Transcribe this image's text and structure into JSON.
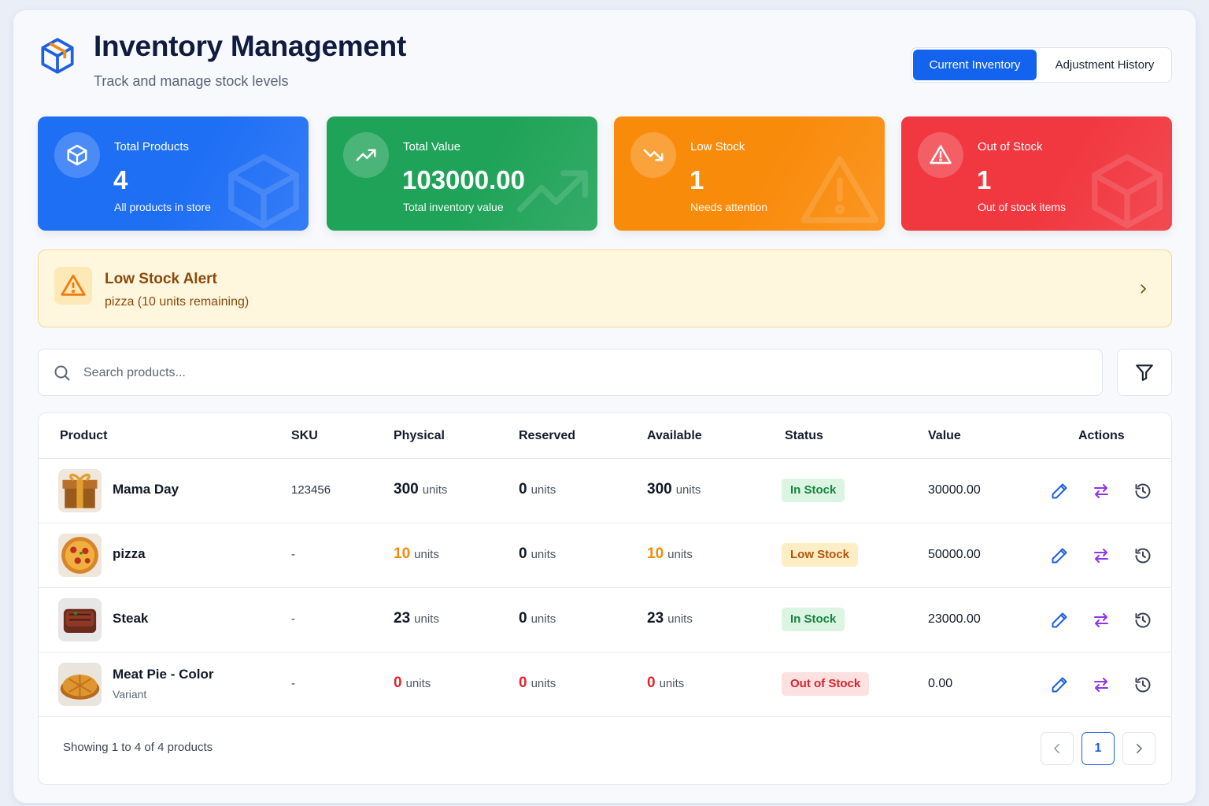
{
  "header": {
    "title": "Inventory Management",
    "subtitle": "Track and manage stock levels"
  },
  "tabs": [
    "Current Inventory",
    "Adjustment History"
  ],
  "stats": [
    {
      "label": "Total Products",
      "value": "4",
      "note": "All products in store",
      "color": "#1f6ff5"
    },
    {
      "label": "Total Value",
      "value": "103000.00",
      "note": "Total inventory value",
      "color": "#1fa358"
    },
    {
      "label": "Low Stock",
      "value": "1",
      "note": "Needs attention",
      "color": "#f98b0b"
    },
    {
      "label": "Out of Stock",
      "value": "1",
      "note": "Out of stock items",
      "color": "#f1373f"
    }
  ],
  "alert": {
    "title": "Low Stock Alert",
    "message": "pizza (10 units remaining)"
  },
  "search": {
    "placeholder": "Search products..."
  },
  "table": {
    "columns": [
      "Product",
      "SKU",
      "Physical",
      "Reserved",
      "Available",
      "Status",
      "Value",
      "Actions"
    ],
    "rows": [
      {
        "product": "Mama Day",
        "sku": "123456",
        "physical": {
          "amount": "300",
          "unit": "units",
          "color": "#111827"
        },
        "reserved": {
          "amount": "0",
          "unit": "units",
          "color": "#111827"
        },
        "available": {
          "amount": "300",
          "unit": "units",
          "color": "#111827"
        },
        "status": {
          "label": "In Stock",
          "color": "#17843f",
          "background": "#dbf5e2"
        },
        "value": "30000.00"
      },
      {
        "product": "pizza",
        "sku": "-",
        "physical": {
          "amount": "10",
          "unit": "units",
          "color": "#f28a0c"
        },
        "reserved": {
          "amount": "0",
          "unit": "units",
          "color": "#111827"
        },
        "available": {
          "amount": "10",
          "unit": "units",
          "color": "#f28a0c"
        },
        "status": {
          "label": "Low Stock",
          "color": "#b5540a",
          "background": "#fdeec6"
        },
        "value": "50000.00"
      },
      {
        "product": "Steak",
        "sku": "-",
        "physical": {
          "amount": "23",
          "unit": "units",
          "color": "#111827"
        },
        "reserved": {
          "amount": "0",
          "unit": "units",
          "color": "#111827"
        },
        "available": {
          "amount": "23",
          "unit": "units",
          "color": "#111827"
        },
        "status": {
          "label": "In Stock",
          "color": "#17843f",
          "background": "#dbf5e2"
        },
        "value": "23000.00"
      },
      {
        "product": "Meat Pie - Color",
        "variant": "Variant",
        "sku": "-",
        "physical": {
          "amount": "0",
          "unit": "units",
          "color": "#e5262e"
        },
        "reserved": {
          "amount": "0",
          "unit": "units",
          "color": "#e5262e"
        },
        "available": {
          "amount": "0",
          "unit": "units",
          "color": "#e5262e"
        },
        "status": {
          "label": "Out of Stock",
          "color": "#d8222b",
          "background": "#fde1e1"
        },
        "value": "0.00"
      }
    ]
  },
  "footer": {
    "summary": "Showing 1 to 4 of 4 products",
    "page": "1"
  }
}
